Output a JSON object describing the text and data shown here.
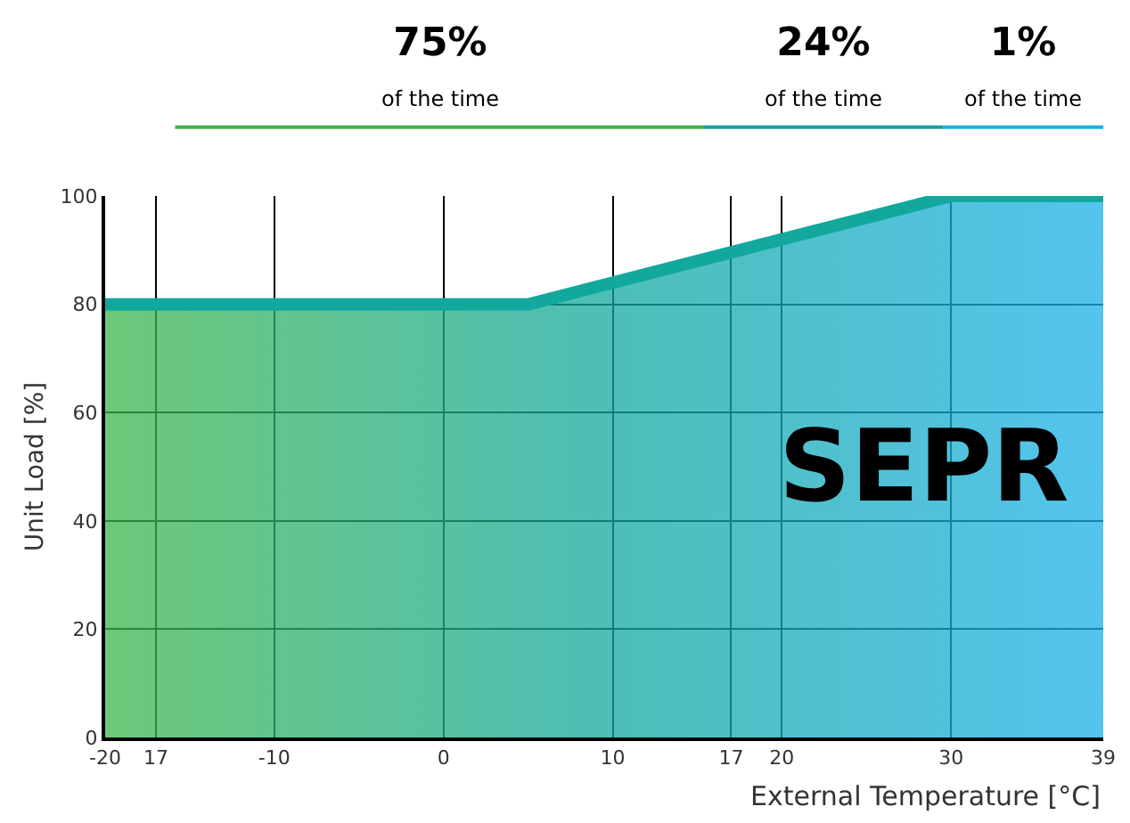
{
  "chart_data": [
    {
      "type": "other",
      "colors": [
        "#3cb54a",
        "#12a3a0",
        "#1ab0e8"
      ],
      "annotations": [
        "75%\nof the time",
        "24%\nof the time",
        "1%\nof the time"
      ]
    },
    {
      "type": "area",
      "xlabel": "External Temperature [°C]",
      "ylabel": "Unit Load [%]",
      "x": [
        -20,
        5,
        30,
        39
      ],
      "series": [
        {
          "color": "#13a89e",
          "values": [
            80,
            80,
            100,
            100
          ]
        }
      ],
      "xlim": [
        -20,
        39
      ],
      "ylim": [
        0,
        100
      ],
      "xticks": [
        -20,
        {
          "value": -17,
          "label": "17"
        },
        -10,
        0,
        10,
        17,
        20,
        30,
        39
      ],
      "yticks": [
        0,
        20,
        40,
        60,
        80,
        100
      ],
      "grid": true,
      "annotations": [
        "SEPR"
      ]
    }
  ]
}
